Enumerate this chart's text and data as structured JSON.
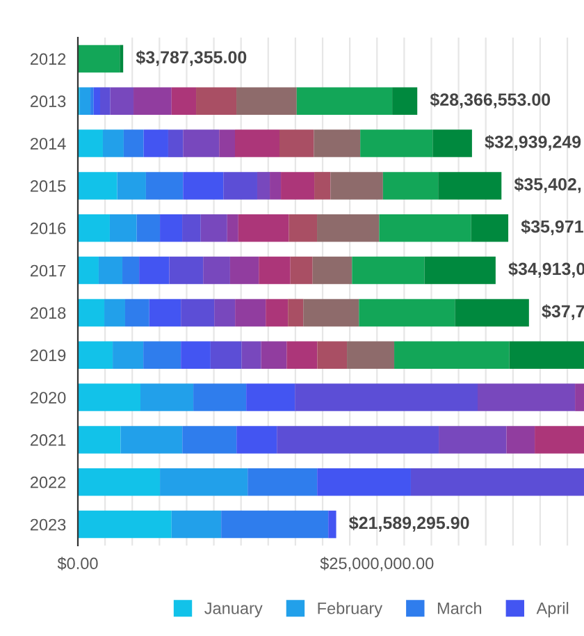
{
  "chart_data": {
    "type": "bar",
    "orientation": "horizontal",
    "stacked": true,
    "categories": [
      "2012",
      "2013",
      "2014",
      "2015",
      "2016",
      "2017",
      "2018",
      "2019",
      "2020",
      "2021",
      "2022",
      "2023"
    ],
    "series": [
      {
        "name": "January",
        "color": "#12c2e9",
        "values": [
          null,
          160000,
          2090000,
          3290000,
          2670000,
          1740000,
          2210000,
          2910000,
          5230000,
          3570000,
          6860000,
          7830000
        ]
      },
      {
        "name": "February",
        "color": "#22a0ea",
        "values": [
          null,
          890000,
          1740000,
          2400000,
          2250000,
          1980000,
          1740000,
          2560000,
          4420000,
          5160000,
          7330000,
          4150000
        ]
      },
      {
        "name": "March",
        "color": "#2f7ded",
        "values": [
          null,
          270000,
          1670000,
          3100000,
          1940000,
          1400000,
          2020000,
          3140000,
          4420000,
          4530000,
          5810000,
          8950000
        ]
      },
      {
        "name": "April",
        "color": "#4355f2",
        "values": [
          null,
          540000,
          2050000,
          3370000,
          1860000,
          2520000,
          2640000,
          2480000,
          4070000,
          3370000,
          7830000,
          659295.9
        ]
      },
      {
        "color": "#5c4ed6",
        "values": [
          null,
          850000,
          1240000,
          2830000,
          1550000,
          2830000,
          2790000,
          2600000,
          15270000,
          13530000,
          14470000,
          null
        ]
      },
      {
        "color": "#7848bd",
        "values": [
          null,
          1940000,
          3020000,
          1050000,
          2210000,
          2250000,
          1740000,
          1630000,
          8140000,
          5660000,
          null,
          null
        ]
      },
      {
        "color": "#913d9f",
        "values": [
          null,
          3180000,
          1320000,
          930000,
          930000,
          2400000,
          2560000,
          2130000,
          750000,
          2360000,
          null,
          null
        ]
      },
      {
        "color": "#ac3679",
        "values": [
          null,
          2050000,
          3720000,
          2790000,
          4220000,
          2640000,
          1860000,
          2560000,
          null,
          4120000,
          null,
          null
        ]
      },
      {
        "color": "#a94f64",
        "values": [
          null,
          3370000,
          2870000,
          1360000,
          2360000,
          1860000,
          1280000,
          2480000,
          null,
          null,
          null,
          null
        ]
      },
      {
        "color": "#8e6b6b",
        "values": [
          null,
          5040000,
          3880000,
          4380000,
          5190000,
          3290000,
          4650000,
          3950000,
          null,
          null,
          null,
          null
        ]
      },
      {
        "color": "#13a658",
        "values": [
          3500000,
          7980000,
          6050000,
          4610000,
          7670000,
          6050000,
          8020000,
          9610000,
          null,
          null,
          null,
          null
        ]
      },
      {
        "color": "#00893e",
        "values": [
          287355,
          2096553,
          3289249,
          5292000,
          3121000,
          5953000,
          6190000,
          6250000,
          null,
          null,
          null,
          null
        ]
      }
    ],
    "totals": [
      "$3,787,355.00",
      "$28,366,553.00",
      "$32,939,249",
      null,
      null,
      "$34,913,0",
      null,
      null,
      null,
      null,
      null,
      "$21,589,295.90"
    ],
    "annotations": [
      {
        "text": "$35,402,",
        "x": 35402000,
        "y": "2015"
      },
      {
        "text": "$35,971",
        "x": 35971000,
        "y": "2016"
      },
      {
        "text": "$37,7",
        "x": 37700000,
        "y": "2018"
      }
    ],
    "xlim": [
      0,
      42300000
    ],
    "xticks": [
      {
        "value": 0,
        "label": "$0.00"
      },
      {
        "value": 2272727,
        "label": null
      },
      {
        "value": 4545455,
        "label": null
      },
      {
        "value": 6818182,
        "label": null
      },
      {
        "value": 9090909,
        "label": null
      },
      {
        "value": 11363636,
        "label": null
      },
      {
        "value": 13636364,
        "label": null
      },
      {
        "value": 15909091,
        "label": null
      },
      {
        "value": 18181818,
        "label": null
      },
      {
        "value": 20454545,
        "label": null
      },
      {
        "value": 22727273,
        "label": null
      },
      {
        "value": 25000000,
        "label": "$25,000,000.00"
      },
      {
        "value": 27272727,
        "label": null
      },
      {
        "value": 29545455,
        "label": null
      },
      {
        "value": 31818182,
        "label": null
      },
      {
        "value": 34090909,
        "label": null
      },
      {
        "value": 36363636,
        "label": null
      },
      {
        "value": 38636364,
        "label": null
      },
      {
        "value": 40909091,
        "label": null
      }
    ],
    "grid": "x",
    "legend": "bottom"
  }
}
